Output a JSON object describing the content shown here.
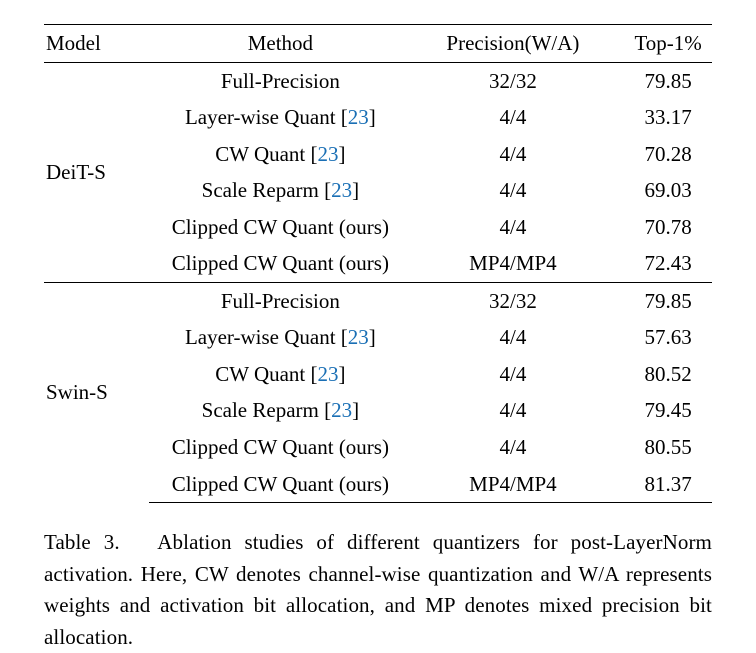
{
  "table": {
    "columns": [
      {
        "key": "model",
        "label": "Model",
        "class": "col-model"
      },
      {
        "key": "method",
        "label": "Method",
        "class": "col-method"
      },
      {
        "key": "precision",
        "label": "Precision(W/A)",
        "class": "col-prec"
      },
      {
        "key": "top1",
        "label": "Top-1%",
        "class": "col-top1"
      }
    ],
    "groups": [
      {
        "model": "DeiT-S",
        "rows": [
          {
            "method_pre": "Full-Precision",
            "cite": null,
            "method_post": "",
            "precision": "32/32",
            "top1": "79.85",
            "top1_bold": false
          },
          {
            "method_pre": "Layer-wise Quant [",
            "cite": "23",
            "method_post": "]",
            "precision": "4/4",
            "top1": "33.17",
            "top1_bold": false
          },
          {
            "method_pre": "CW Quant [",
            "cite": "23",
            "method_post": "]",
            "precision": "4/4",
            "top1": "70.28",
            "top1_bold": false
          },
          {
            "method_pre": "Scale Reparm [",
            "cite": "23",
            "method_post": "]",
            "precision": "4/4",
            "top1": "69.03",
            "top1_bold": false
          },
          {
            "method_pre": "Clipped CW Quant (ours)",
            "cite": null,
            "method_post": "",
            "precision": "4/4",
            "top1": "70.78",
            "top1_bold": false
          },
          {
            "method_pre": "Clipped CW Quant (ours)",
            "cite": null,
            "method_post": "",
            "precision": "MP4/MP4",
            "top1": "72.43",
            "top1_bold": true
          }
        ]
      },
      {
        "model": "Swin-S",
        "rows": [
          {
            "method_pre": "Full-Precision",
            "cite": null,
            "method_post": "",
            "precision": "32/32",
            "top1": "79.85",
            "top1_bold": false
          },
          {
            "method_pre": "Layer-wise Quant [",
            "cite": "23",
            "method_post": "]",
            "precision": "4/4",
            "top1": "57.63",
            "top1_bold": false
          },
          {
            "method_pre": "CW Quant [",
            "cite": "23",
            "method_post": "]",
            "precision": "4/4",
            "top1": "80.52",
            "top1_bold": false
          },
          {
            "method_pre": "Scale Reparm [",
            "cite": "23",
            "method_post": "]",
            "precision": "4/4",
            "top1": "79.45",
            "top1_bold": false
          },
          {
            "method_pre": "Clipped CW Quant (ours)",
            "cite": null,
            "method_post": "",
            "precision": "4/4",
            "top1": "80.55",
            "top1_bold": false
          },
          {
            "method_pre": "Clipped CW Quant (ours)",
            "cite": null,
            "method_post": "",
            "precision": "MP4/MP4",
            "top1": "81.37",
            "top1_bold": true
          }
        ]
      }
    ],
    "rule_color": "#000000",
    "background_color": "#ffffff",
    "font_family": "Times New Roman",
    "font_size_pt": 16,
    "cite_color": "#1a6fb5"
  },
  "caption": {
    "label": "Table 3.",
    "text": "Ablation studies of different quantizers for post-LayerNorm activation. Here, CW denotes channel-wise quantization and W/A represents weights and activation bit allocation, and MP denotes mixed precision bit allocation."
  }
}
